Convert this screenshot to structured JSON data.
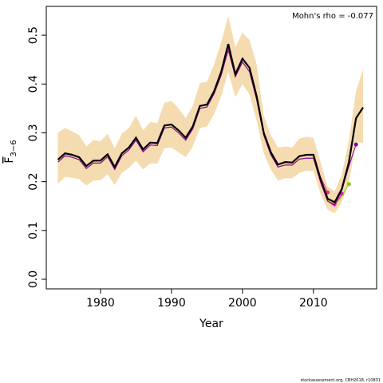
{
  "chart_data": {
    "type": "retro-line",
    "annotation": "Mohn's rho = -0.077",
    "xlabel": "Year",
    "ylabel": "F",
    "ylabel_sub": "3−6",
    "footer": "stockassessment.org, CBH2018, r10831",
    "xlim": [
      1972.36,
      2018.9
    ],
    "ylim": [
      -0.0196,
      0.559
    ],
    "xticks": [
      1980,
      1990,
      2000,
      2010
    ],
    "yticks": [
      {
        "value": 0,
        "label": "0.0"
      },
      0.1,
      0.2,
      0.3,
      0.4,
      0.5
    ],
    "band_color": "#f5dbb0",
    "x": [
      1974,
      1975,
      1976,
      1977,
      1978,
      1979,
      1980,
      1981,
      1982,
      1983,
      1984,
      1985,
      1986,
      1987,
      1988,
      1989,
      1990,
      1991,
      1992,
      1993,
      1994,
      1995,
      1996,
      1997,
      1998,
      1999,
      2000,
      2001,
      2002,
      2003,
      2004,
      2005,
      2006,
      2007,
      2008,
      2009,
      2010,
      2011,
      2012,
      2013,
      2014,
      2015,
      2016,
      2017
    ],
    "upper": [
      0.3,
      0.31,
      0.303,
      0.295,
      0.272,
      0.285,
      0.283,
      0.298,
      0.268,
      0.298,
      0.31,
      0.335,
      0.305,
      0.322,
      0.32,
      0.362,
      0.365,
      0.35,
      0.33,
      0.355,
      0.402,
      0.405,
      0.44,
      0.485,
      0.54,
      0.475,
      0.505,
      0.49,
      0.44,
      0.335,
      0.295,
      0.27,
      0.272,
      0.27,
      0.288,
      0.292,
      0.29,
      0.24,
      0.19,
      0.18,
      0.215,
      0.285,
      0.385,
      0.43
    ],
    "lower": [
      0.195,
      0.21,
      0.208,
      0.205,
      0.192,
      0.202,
      0.203,
      0.215,
      0.193,
      0.218,
      0.228,
      0.243,
      0.225,
      0.237,
      0.237,
      0.268,
      0.27,
      0.26,
      0.25,
      0.272,
      0.31,
      0.313,
      0.338,
      0.375,
      0.425,
      0.373,
      0.4,
      0.378,
      0.325,
      0.258,
      0.225,
      0.202,
      0.207,
      0.207,
      0.218,
      0.222,
      0.222,
      0.175,
      0.143,
      0.135,
      0.158,
      0.2,
      0.28,
      0.28
    ],
    "series": [
      {
        "color": "#e0307a",
        "values": [
          0.24,
          0.253,
          0.25,
          0.245,
          0.227,
          0.238,
          0.238,
          0.251,
          0.225,
          0.253,
          0.265,
          0.285,
          0.261,
          0.275,
          0.274,
          0.31,
          0.312,
          0.3,
          0.285,
          0.308,
          0.35,
          0.353,
          0.38,
          0.418,
          0.47,
          0.415,
          0.445,
          0.425,
          0.368,
          0.295,
          0.255,
          0.23,
          0.234,
          0.234,
          0.246,
          0.248,
          0.248,
          0.21,
          0.178,
          null,
          null,
          null,
          null,
          null
        ]
      },
      {
        "color": "#ff3030",
        "values": [
          0.24,
          0.253,
          0.25,
          0.245,
          0.227,
          0.238,
          0.238,
          0.251,
          0.225,
          0.253,
          0.265,
          0.285,
          0.261,
          0.275,
          0.274,
          0.31,
          0.312,
          0.3,
          0.285,
          0.308,
          0.35,
          0.353,
          0.38,
          0.418,
          0.47,
          0.415,
          0.445,
          0.425,
          0.368,
          0.295,
          0.255,
          0.23,
          0.234,
          0.234,
          0.246,
          0.248,
          0.248,
          0.202,
          0.16,
          0.155,
          null,
          null,
          null,
          null
        ]
      },
      {
        "color": "#ff00cc",
        "values": [
          0.24,
          0.253,
          0.25,
          0.245,
          0.227,
          0.238,
          0.238,
          0.251,
          0.225,
          0.253,
          0.265,
          0.285,
          0.261,
          0.275,
          0.274,
          0.31,
          0.312,
          0.3,
          0.285,
          0.308,
          0.35,
          0.353,
          0.38,
          0.418,
          0.47,
          0.415,
          0.445,
          0.425,
          0.368,
          0.295,
          0.255,
          0.23,
          0.234,
          0.234,
          0.246,
          0.248,
          0.248,
          0.198,
          0.16,
          0.15,
          0.175,
          null,
          null,
          null
        ]
      },
      {
        "color": "#7fcc00",
        "values": [
          0.24,
          0.253,
          0.25,
          0.245,
          0.227,
          0.238,
          0.238,
          0.251,
          0.225,
          0.253,
          0.265,
          0.285,
          0.261,
          0.275,
          0.274,
          0.31,
          0.312,
          0.3,
          0.285,
          0.308,
          0.35,
          0.353,
          0.38,
          0.418,
          0.47,
          0.415,
          0.445,
          0.425,
          0.368,
          0.295,
          0.255,
          0.23,
          0.234,
          0.234,
          0.246,
          0.248,
          0.248,
          0.2,
          0.162,
          0.152,
          0.17,
          0.195,
          null,
          null
        ]
      },
      {
        "color": "#8000a0",
        "values": [
          0.24,
          0.253,
          0.25,
          0.245,
          0.227,
          0.238,
          0.238,
          0.251,
          0.225,
          0.253,
          0.265,
          0.285,
          0.261,
          0.275,
          0.274,
          0.31,
          0.312,
          0.3,
          0.285,
          0.308,
          0.35,
          0.353,
          0.38,
          0.418,
          0.47,
          0.415,
          0.445,
          0.425,
          0.368,
          0.295,
          0.255,
          0.23,
          0.234,
          0.234,
          0.246,
          0.248,
          0.248,
          0.2,
          0.16,
          0.152,
          0.182,
          0.232,
          0.276,
          null
        ]
      },
      {
        "color": "#000000",
        "values": [
          0.245,
          0.258,
          0.255,
          0.25,
          0.232,
          0.243,
          0.243,
          0.256,
          0.23,
          0.258,
          0.27,
          0.29,
          0.266,
          0.28,
          0.279,
          0.315,
          0.317,
          0.305,
          0.29,
          0.313,
          0.355,
          0.358,
          0.385,
          0.425,
          0.482,
          0.42,
          0.452,
          0.433,
          0.375,
          0.3,
          0.26,
          0.235,
          0.24,
          0.239,
          0.252,
          0.255,
          0.255,
          0.205,
          0.165,
          0.158,
          0.185,
          0.24,
          0.33,
          0.352
        ]
      }
    ]
  }
}
